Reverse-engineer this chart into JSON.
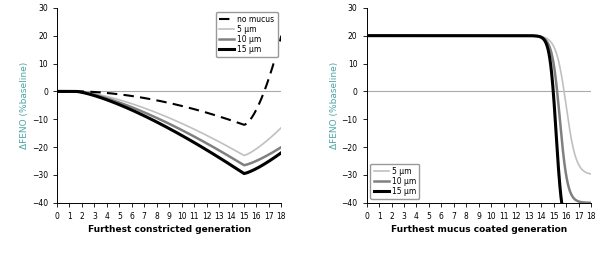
{
  "xlabel_left": "Furthest constricted generation",
  "xlabel_right": "Furthest mucus coated generation",
  "ylabel": "ΔFENO (%baseline)",
  "ylim": [
    -40,
    30
  ],
  "yticks": [
    -40,
    -30,
    -20,
    -10,
    0,
    10,
    20,
    30
  ],
  "xlim": [
    0,
    18
  ],
  "xticks": [
    0,
    1,
    2,
    3,
    4,
    5,
    6,
    7,
    8,
    9,
    10,
    11,
    12,
    13,
    14,
    15,
    16,
    17,
    18
  ],
  "zero_line_color": "#aaaaaa",
  "ylabel_color": "#4da6a6",
  "left_legend_labels": [
    "no mucus",
    "5 μm",
    "10 μm",
    "15 μm"
  ],
  "right_legend_labels": [
    "5 μm",
    "10 μm",
    "15 μm"
  ],
  "color_5um": "#c0c0c0",
  "color_10um": "#808080",
  "color_15um": "#000000",
  "color_nomucus": "#000000"
}
